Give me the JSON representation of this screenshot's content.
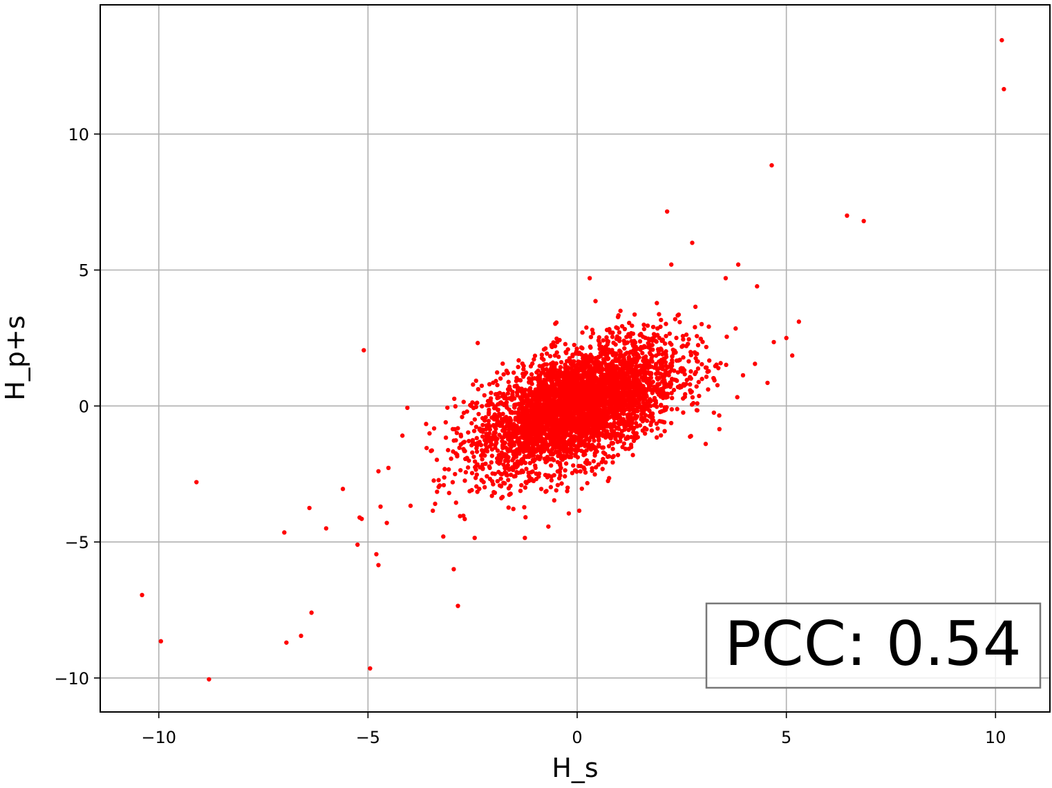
{
  "chart_data": {
    "type": "scatter",
    "title": "",
    "xlabel": "H_s",
    "ylabel": "H_p+s",
    "xlim": [
      -11.4,
      11.3
    ],
    "ylim": [
      -11.25,
      14.75
    ],
    "xticks": [
      -10,
      -5,
      0,
      5,
      10
    ],
    "yticks": [
      -10,
      -5,
      0,
      5,
      10
    ],
    "xtick_labels": [
      "−10",
      "−5",
      "0",
      "5",
      "10"
    ],
    "ytick_labels": [
      "−10",
      "−5",
      "0",
      "5",
      "10"
    ],
    "grid": true,
    "marker_color": "#ff0000",
    "annotation": "PCC: 0.54",
    "annotation_location": "lower-right",
    "point_cloud": {
      "count": 4000,
      "center": [
        0.0,
        0.0
      ],
      "std": [
        1.2,
        1.2
      ],
      "pcc": 0.54
    },
    "outliers": [
      {
        "x": 10.15,
        "y": 13.45
      },
      {
        "x": 10.2,
        "y": 11.65
      },
      {
        "x": 4.65,
        "y": 8.85
      },
      {
        "x": 6.45,
        "y": 7.0
      },
      {
        "x": 6.85,
        "y": 6.8
      },
      {
        "x": 2.15,
        "y": 7.15
      },
      {
        "x": 2.75,
        "y": 6.0
      },
      {
        "x": 2.25,
        "y": 5.2
      },
      {
        "x": 3.85,
        "y": 5.2
      },
      {
        "x": 0.3,
        "y": 4.7
      },
      {
        "x": 3.55,
        "y": 4.7
      },
      {
        "x": 4.3,
        "y": 4.4
      },
      {
        "x": 5.3,
        "y": 3.1
      },
      {
        "x": 5.0,
        "y": 2.5
      },
      {
        "x": 4.7,
        "y": 2.35
      },
      {
        "x": 4.25,
        "y": 1.55
      },
      {
        "x": 4.55,
        "y": 0.85
      },
      {
        "x": 3.4,
        "y": -0.85
      },
      {
        "x": -5.1,
        "y": 2.05
      },
      {
        "x": -9.1,
        "y": -2.8
      },
      {
        "x": -6.4,
        "y": -3.75
      },
      {
        "x": -5.6,
        "y": -3.05
      },
      {
        "x": -4.75,
        "y": -2.4
      },
      {
        "x": -4.7,
        "y": -3.7
      },
      {
        "x": -6.0,
        "y": -4.5
      },
      {
        "x": -7.0,
        "y": -4.65
      },
      {
        "x": -5.2,
        "y": -4.1
      },
      {
        "x": -5.15,
        "y": -4.15
      },
      {
        "x": -4.55,
        "y": -4.3
      },
      {
        "x": -5.25,
        "y": -5.1
      },
      {
        "x": -4.8,
        "y": -5.45
      },
      {
        "x": -4.75,
        "y": -5.85
      },
      {
        "x": -2.95,
        "y": -6.0
      },
      {
        "x": -2.85,
        "y": -7.35
      },
      {
        "x": -6.35,
        "y": -7.6
      },
      {
        "x": -6.6,
        "y": -8.45
      },
      {
        "x": -6.95,
        "y": -8.7
      },
      {
        "x": -10.4,
        "y": -6.95
      },
      {
        "x": -9.95,
        "y": -8.65
      },
      {
        "x": -8.8,
        "y": -10.05
      },
      {
        "x": -4.95,
        "y": -9.65
      },
      {
        "x": -3.2,
        "y": -4.8
      },
      {
        "x": -2.45,
        "y": -4.85
      },
      {
        "x": -1.25,
        "y": -4.85
      },
      {
        "x": -3.45,
        "y": -3.85
      },
      {
        "x": -2.8,
        "y": -4.05
      },
      {
        "x": -0.2,
        "y": -3.95
      },
      {
        "x": 0.05,
        "y": -3.85
      }
    ]
  }
}
